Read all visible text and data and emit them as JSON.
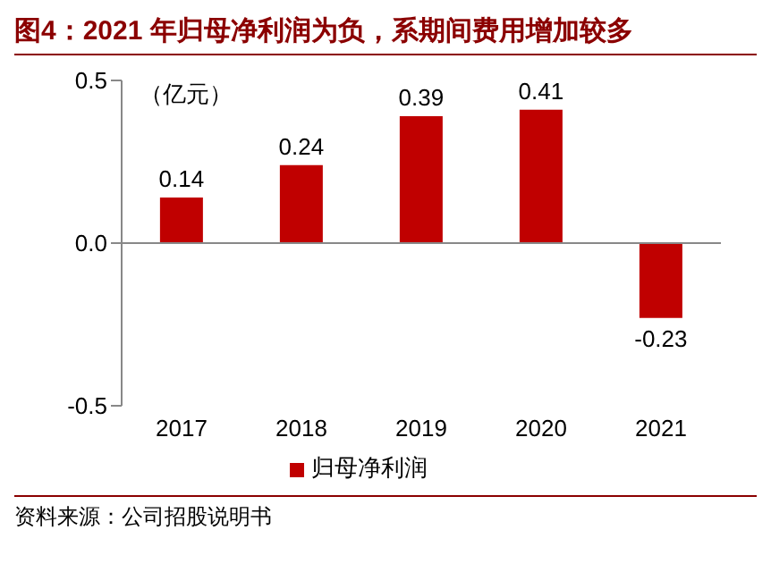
{
  "chart_data": {
    "type": "bar",
    "title": "图4：2021 年归母净利润为负，系期间费用增加较多",
    "ylabel": "（亿元）",
    "categories": [
      "2017",
      "2018",
      "2019",
      "2020",
      "2021"
    ],
    "series": [
      {
        "name": "归母净利润",
        "color": "#c00000",
        "values": [
          0.14,
          0.24,
          0.39,
          0.41,
          -0.23
        ]
      }
    ],
    "ylim": [
      -0.5,
      0.5
    ],
    "yticks": [
      -0.5,
      {
        "value": 0,
        "label": "0.0"
      },
      0.5
    ],
    "data_labels": true,
    "legend": "bottom",
    "annotations": [
      "资料来源：公司招股说明书"
    ]
  }
}
